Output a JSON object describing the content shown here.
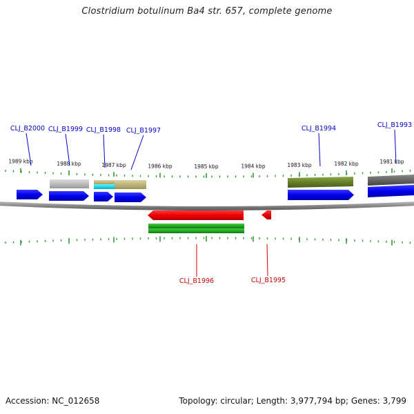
{
  "title": "Clostridium botulinum Ba4 str. 657, complete genome",
  "footer": {
    "accession": "Accession: NC_012658",
    "topology": "Topology: circular; Length: 3,977,794 bp; Genes: 3,799"
  },
  "colors": {
    "forward_label": "#0000cc",
    "reverse_label": "#cc0000",
    "tick": "#339933",
    "backbone": "#888888",
    "forward_gene": "#0000ee",
    "reverse_gene": "#ee0000",
    "green_feature": "#22aa22"
  },
  "ticks": [
    {
      "label": "1989 kbp"
    },
    {
      "label": "1988 kbp"
    },
    {
      "label": "1987 kbp"
    },
    {
      "label": "1986 kbp"
    },
    {
      "label": "1985 kbp"
    },
    {
      "label": "1984 kbp"
    },
    {
      "label": "1983 kbp"
    },
    {
      "label": "1982 kbp"
    },
    {
      "label": "1981 kbp"
    }
  ],
  "forward_genes": [
    {
      "label": "CLJ_B2000"
    },
    {
      "label": "CLJ_B1999"
    },
    {
      "label": "CLJ_B1998"
    },
    {
      "label": "CLJ_B1997"
    },
    {
      "label": "CLJ_B1994"
    },
    {
      "label": "CLJ_B1993"
    }
  ],
  "reverse_genes": [
    {
      "label": "CLJ_B1996"
    },
    {
      "label": "CLJ_B1995"
    }
  ]
}
